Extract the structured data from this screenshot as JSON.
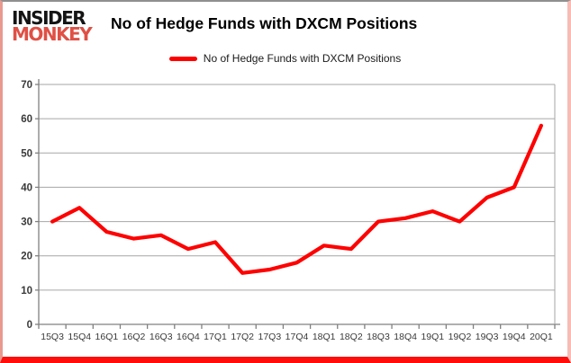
{
  "logo": {
    "line1": "INSIDER",
    "line2": "MONKEY"
  },
  "header": {
    "title": "No of Hedge Funds with DXCM Positions"
  },
  "legend": {
    "label": "No of Hedge Funds with DXCM Positions"
  },
  "chart_data": {
    "type": "line",
    "title": "No of Hedge Funds with DXCM Positions",
    "categories": [
      "15Q3",
      "15Q4",
      "16Q1",
      "16Q2",
      "16Q3",
      "16Q4",
      "17Q1",
      "17Q2",
      "17Q3",
      "17Q4",
      "18Q1",
      "18Q2",
      "18Q3",
      "18Q4",
      "19Q1",
      "19Q2",
      "19Q3",
      "19Q4",
      "20Q1"
    ],
    "series": [
      {
        "name": "No of Hedge Funds with DXCM Positions",
        "values": [
          30,
          34,
          27,
          25,
          26,
          22,
          24,
          15,
          16,
          18,
          23,
          22,
          30,
          31,
          33,
          30,
          37,
          40,
          58
        ],
        "color": "#fe0000"
      }
    ],
    "ylim": [
      0,
      70
    ],
    "yticks": [
      0,
      10,
      20,
      30,
      40,
      50,
      60,
      70
    ],
    "grid": true,
    "legend_position": "top",
    "xlabel": "",
    "ylabel": ""
  },
  "colors": {
    "line_red": "#fe0000",
    "logo_red": "#df5045",
    "grid": "#a6a6a6",
    "axis": "#808080",
    "tick_text": "#3a3a3a",
    "background": "#ffffff"
  }
}
